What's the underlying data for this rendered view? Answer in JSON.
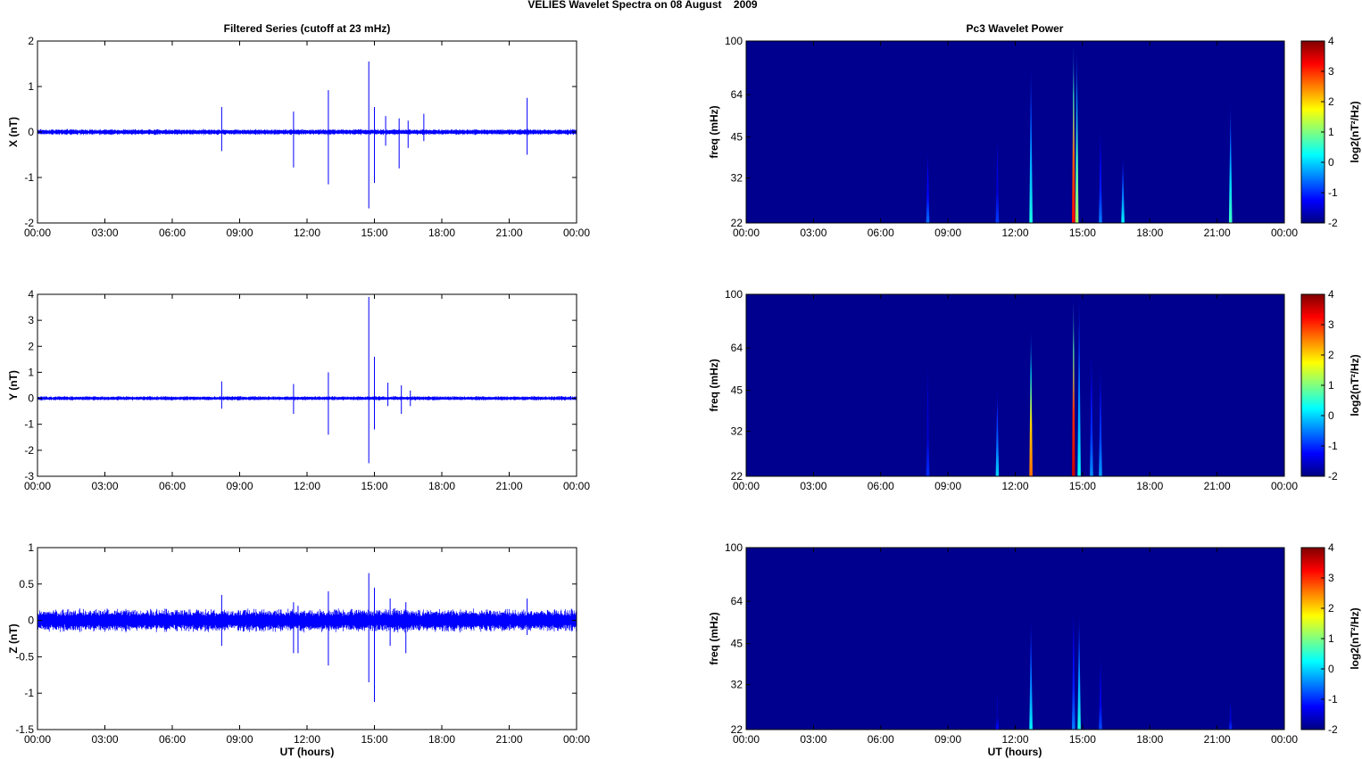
{
  "figure": {
    "title": "VELIES Wavelet Spectra on 08 August    2009",
    "left_title": "Filtered Series (cutoff at 23 mHz)",
    "right_title": "Pc3 Wavelet Power",
    "xlabel": "UT (hours)",
    "time_ticks": [
      "00:00",
      "03:00",
      "06:00",
      "09:00",
      "12:00",
      "15:00",
      "18:00",
      "21:00",
      "00:00"
    ]
  },
  "chart_data": [
    {
      "type": "line",
      "title": "Filtered Series (cutoff at 23 mHz)",
      "ylabel": "X (nT)",
      "xlabel": "",
      "x_unit": "UT hours",
      "xlim": [
        0,
        24
      ],
      "ylim": [
        -2,
        2
      ],
      "yticks": [
        2,
        1,
        0,
        -1,
        -2
      ],
      "color": "#0000ff",
      "noise_amplitude": 0.07,
      "spikes": [
        {
          "t": 8.2,
          "max": 0.55,
          "min": -0.42
        },
        {
          "t": 11.4,
          "max": 0.45,
          "min": -0.78
        },
        {
          "t": 12.95,
          "max": 0.92,
          "min": -1.15
        },
        {
          "t": 14.75,
          "max": 1.55,
          "min": -1.68
        },
        {
          "t": 15.0,
          "max": 0.55,
          "min": -1.12
        },
        {
          "t": 15.5,
          "max": 0.35,
          "min": -0.3
        },
        {
          "t": 16.1,
          "max": 0.3,
          "min": -0.8
        },
        {
          "t": 16.5,
          "max": 0.25,
          "min": -0.35
        },
        {
          "t": 17.2,
          "max": 0.4,
          "min": -0.2
        },
        {
          "t": 21.8,
          "max": 0.75,
          "min": -0.5
        }
      ]
    },
    {
      "type": "heatmap",
      "title": "Pc3 Wavelet Power",
      "ylabel": "freq (mHz)",
      "xlim": [
        0,
        24
      ],
      "ylim": [
        22,
        100
      ],
      "yticks": [
        100,
        64,
        45,
        32,
        22
      ],
      "colorbar": {
        "label": "log2(nT²/Hz)",
        "range": [
          -2,
          4
        ],
        "ticks": [
          4,
          3,
          2,
          1,
          0,
          -1,
          -2
        ]
      },
      "background": "#00008f",
      "bursts": [
        {
          "t": 8.1,
          "top": 40,
          "peak": -0.6
        },
        {
          "t": 11.2,
          "top": 45,
          "peak": -0.9
        },
        {
          "t": 12.7,
          "top": 82,
          "peak": 0.4
        },
        {
          "t": 14.6,
          "top": 100,
          "peak": 3.3
        },
        {
          "t": 14.75,
          "top": 95,
          "peak": 1.2
        },
        {
          "t": 15.8,
          "top": 48,
          "peak": -0.5
        },
        {
          "t": 16.8,
          "top": 38,
          "peak": 0.2
        },
        {
          "t": 21.6,
          "top": 60,
          "peak": 0.6
        }
      ]
    },
    {
      "type": "line",
      "title": "",
      "ylabel": "Y (nT)",
      "xlabel": "",
      "x_unit": "UT hours",
      "xlim": [
        0,
        24
      ],
      "ylim": [
        -3,
        4
      ],
      "yticks": [
        4,
        3,
        2,
        1,
        0,
        -1,
        -2,
        -3
      ],
      "color": "#0000ff",
      "noise_amplitude": 0.09,
      "spikes": [
        {
          "t": 8.2,
          "max": 0.65,
          "min": -0.4
        },
        {
          "t": 11.4,
          "max": 0.55,
          "min": -0.6
        },
        {
          "t": 12.95,
          "max": 1.0,
          "min": -1.4
        },
        {
          "t": 14.75,
          "max": 3.9,
          "min": -2.5
        },
        {
          "t": 15.0,
          "max": 1.6,
          "min": -1.2
        },
        {
          "t": 15.6,
          "max": 0.6,
          "min": -0.3
        },
        {
          "t": 16.2,
          "max": 0.5,
          "min": -0.6
        },
        {
          "t": 16.6,
          "max": 0.3,
          "min": -0.3
        }
      ]
    },
    {
      "type": "heatmap",
      "title": "",
      "ylabel": "freq (mHz)",
      "xlim": [
        0,
        24
      ],
      "ylim": [
        22,
        100
      ],
      "yticks": [
        100,
        64,
        45,
        32,
        22
      ],
      "colorbar": {
        "label": "log2(nT²/Hz)",
        "range": [
          -2,
          4
        ],
        "ticks": [
          4,
          3,
          2,
          1,
          0,
          -1,
          -2
        ]
      },
      "background": "#00008f",
      "bursts": [
        {
          "t": 8.1,
          "top": 55,
          "peak": -1.0
        },
        {
          "t": 11.2,
          "top": 45,
          "peak": 0.0
        },
        {
          "t": 12.7,
          "top": 75,
          "peak": 2.6
        },
        {
          "t": 14.6,
          "top": 100,
          "peak": 3.6
        },
        {
          "t": 14.85,
          "top": 100,
          "peak": 0.3
        },
        {
          "t": 15.4,
          "top": 62,
          "peak": -0.4
        },
        {
          "t": 15.8,
          "top": 55,
          "peak": -0.3
        }
      ]
    },
    {
      "type": "line",
      "title": "",
      "ylabel": "Z (nT)",
      "xlabel": "UT (hours)",
      "x_unit": "UT hours",
      "xlim": [
        0,
        24
      ],
      "ylim": [
        -1.5,
        1
      ],
      "yticks": [
        1,
        0.5,
        0,
        -0.5,
        -1,
        -1.5
      ],
      "color": "#0000ff",
      "noise_amplitude": 0.17,
      "spikes": [
        {
          "t": 8.2,
          "max": 0.35,
          "min": -0.35
        },
        {
          "t": 11.4,
          "max": 0.25,
          "min": -0.45
        },
        {
          "t": 11.6,
          "max": 0.2,
          "min": -0.45
        },
        {
          "t": 12.95,
          "max": 0.4,
          "min": -0.62
        },
        {
          "t": 14.75,
          "max": 0.65,
          "min": -0.85
        },
        {
          "t": 15.0,
          "max": 0.45,
          "min": -1.12
        },
        {
          "t": 15.7,
          "max": 0.3,
          "min": -0.35
        },
        {
          "t": 16.4,
          "max": 0.25,
          "min": -0.45
        },
        {
          "t": 21.8,
          "max": 0.3,
          "min": -0.2
        }
      ]
    },
    {
      "type": "heatmap",
      "title": "",
      "ylabel": "freq (mHz)",
      "xlim": [
        0,
        24
      ],
      "ylim": [
        22,
        100
      ],
      "yticks": [
        100,
        64,
        45,
        32,
        22
      ],
      "colorbar": {
        "label": "log2(nT²/Hz)",
        "range": [
          -2,
          4
        ],
        "ticks": [
          4,
          3,
          2,
          1,
          0,
          -1,
          -2
        ]
      },
      "background": "#00008f",
      "bursts": [
        {
          "t": 11.2,
          "top": 30,
          "peak": -1.2
        },
        {
          "t": 12.7,
          "top": 55,
          "peak": 0.2
        },
        {
          "t": 14.6,
          "top": 60,
          "peak": -0.5
        },
        {
          "t": 14.85,
          "top": 58,
          "peak": 0.4
        },
        {
          "t": 15.8,
          "top": 40,
          "peak": -0.8
        },
        {
          "t": 21.6,
          "top": 28,
          "peak": -1.0
        }
      ]
    }
  ]
}
